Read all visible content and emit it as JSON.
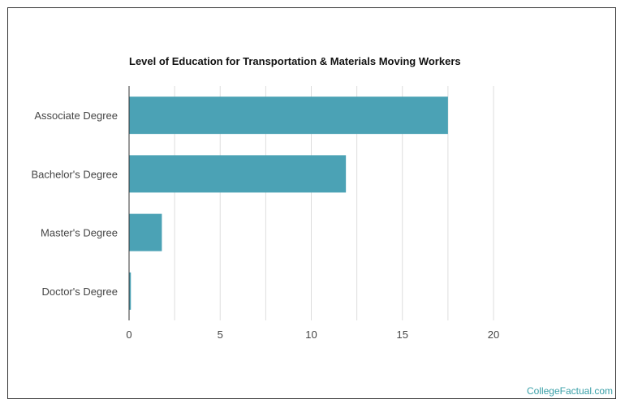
{
  "credit": "CollegeFactual.com",
  "colors": {
    "bar": "#4ba2b5",
    "grid": "#dddddd",
    "axis": "#333333"
  },
  "chart_data": {
    "type": "bar",
    "orientation": "horizontal",
    "title": "Level of Education for Transportation & Materials Moving Workers",
    "xlabel": "",
    "ylabel": "",
    "categories": [
      "Associate Degree",
      "Bachelor's Degree",
      "Master's Degree",
      "Doctor's Degree"
    ],
    "values": [
      17.5,
      11.9,
      1.8,
      0.1
    ],
    "xlim": [
      0,
      20
    ],
    "xticks": [
      0,
      5,
      10,
      15,
      20
    ],
    "grid": true,
    "legend": "none"
  }
}
